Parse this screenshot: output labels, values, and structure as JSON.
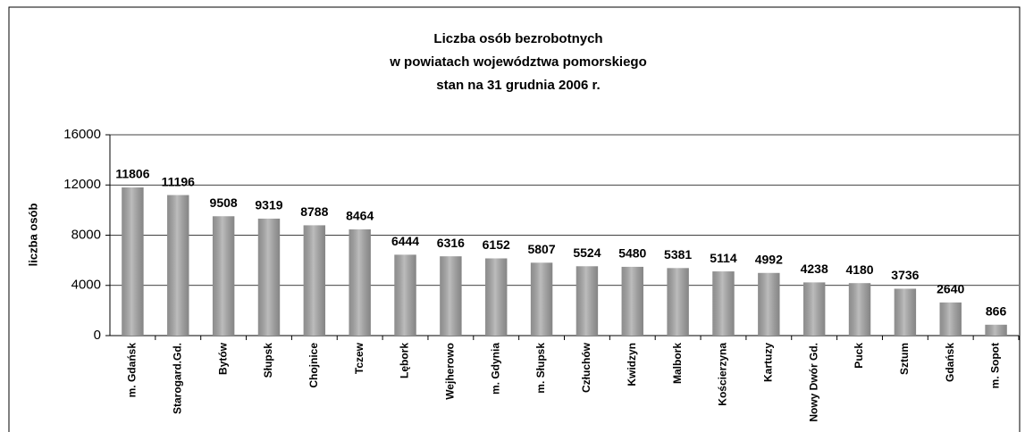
{
  "chart_data": {
    "type": "bar",
    "title": [
      "Liczba osób bezrobotnych",
      "w powiatach województwa pomorskiego",
      "stan na 31 grudnia 2006 r."
    ],
    "ylabel": "liczba osób",
    "categories": [
      "m. Gdańsk",
      "Starogard.Gd.",
      "Bytów",
      "Słupsk",
      "Chojnice",
      "Tczew",
      "Lębork",
      "Wejherowo",
      "m. Gdynia",
      "m. Słupsk",
      "Człuchów",
      "Kwidzyn",
      "Malbork",
      "Kościerzyna",
      "Kartuzy",
      "Nowy Dwór Gd.",
      "Puck",
      "Sztum",
      "Gdańsk",
      "m. Sopot"
    ],
    "values": [
      11806,
      11196,
      9508,
      9319,
      8788,
      8464,
      6444,
      6316,
      6152,
      5807,
      5524,
      5480,
      5381,
      5114,
      4992,
      4238,
      4180,
      3736,
      2640,
      866
    ],
    "color": "#a6a6a6",
    "ylim": [
      0,
      16000
    ],
    "yticks": [
      0,
      4000,
      8000,
      12000,
      16000
    ],
    "grid": true
  }
}
